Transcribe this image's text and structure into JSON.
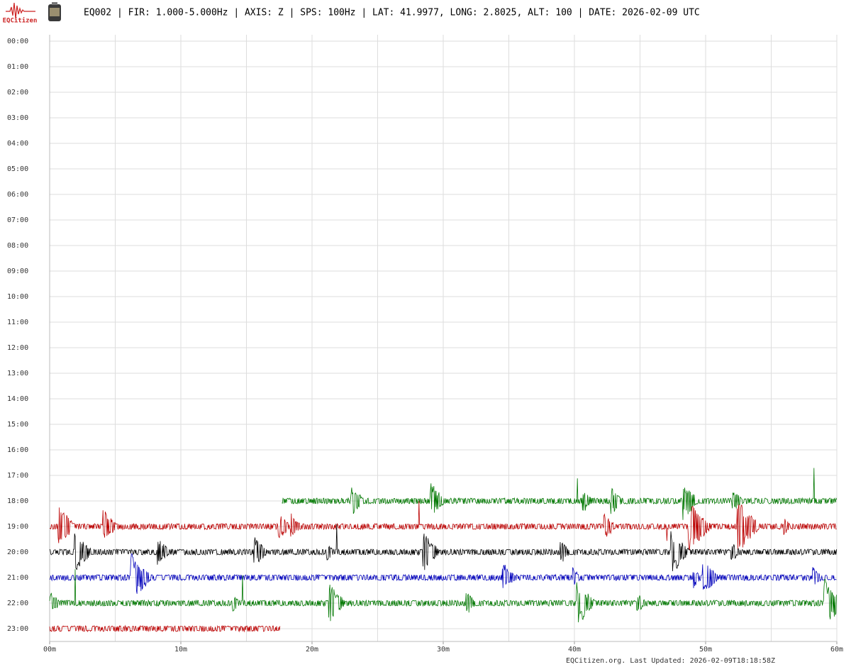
{
  "header": {
    "logo_text": "EQCitizen",
    "title": "EQ002 | FIR: 1.000-5.000Hz | AXIS: Z | SPS: 100Hz | LAT: 41.9977, LONG: 2.8025, ALT: 100 | DATE: 2026-02-09 UTC"
  },
  "chart_data": {
    "type": "helicorder",
    "xlim": [
      0,
      60
    ],
    "xticks": [
      {
        "value": 0,
        "label": "00m"
      },
      {
        "value": 10,
        "label": "10m"
      },
      {
        "value": 20,
        "label": "20m"
      },
      {
        "value": 30,
        "label": "30m"
      },
      {
        "value": 40,
        "label": "40m"
      },
      {
        "value": 50,
        "label": "50m"
      },
      {
        "value": 60,
        "label": "60m"
      }
    ],
    "ylim": [
      -0.25,
      23.5
    ],
    "yticks": [
      {
        "value": 0,
        "label": "00:00"
      },
      {
        "value": 1,
        "label": "01:00"
      },
      {
        "value": 2,
        "label": "02:00"
      },
      {
        "value": 3,
        "label": "03:00"
      },
      {
        "value": 4,
        "label": "04:00"
      },
      {
        "value": 5,
        "label": "05:00"
      },
      {
        "value": 6,
        "label": "06:00"
      },
      {
        "value": 7,
        "label": "07:00"
      },
      {
        "value": 8,
        "label": "08:00"
      },
      {
        "value": 9,
        "label": "09:00"
      },
      {
        "value": 10,
        "label": "10:00"
      },
      {
        "value": 11,
        "label": "11:00"
      },
      {
        "value": 12,
        "label": "12:00"
      },
      {
        "value": 13,
        "label": "13:00"
      },
      {
        "value": 14,
        "label": "14:00"
      },
      {
        "value": 15,
        "label": "15:00"
      },
      {
        "value": 16,
        "label": "16:00"
      },
      {
        "value": 17,
        "label": "17:00"
      },
      {
        "value": 18,
        "label": "18:00"
      },
      {
        "value": 19,
        "label": "19:00"
      },
      {
        "value": 20,
        "label": "20:00"
      },
      {
        "value": 21,
        "label": "21:00"
      },
      {
        "value": 22,
        "label": "22:00"
      },
      {
        "value": 23,
        "label": "23:00"
      }
    ],
    "xgrid_step": 5,
    "grid": true,
    "traces": [
      {
        "hour": 18,
        "start": 17.7,
        "end": 60,
        "color": "#007700"
      },
      {
        "hour": 19,
        "start": 0,
        "end": 60,
        "color": "#bb0000"
      },
      {
        "hour": 20,
        "start": 0,
        "end": 60,
        "color": "#000000"
      },
      {
        "hour": 21,
        "start": 0,
        "end": 60,
        "color": "#0000bb"
      },
      {
        "hour": 22,
        "start": 0,
        "end": 60,
        "color": "#007700"
      },
      {
        "hour": 23,
        "start": 0,
        "end": 17.6,
        "color": "#bb0000"
      }
    ]
  },
  "footer": "EQCitizen.org. Last Updated: 2026-02-09T18:18:58Z"
}
